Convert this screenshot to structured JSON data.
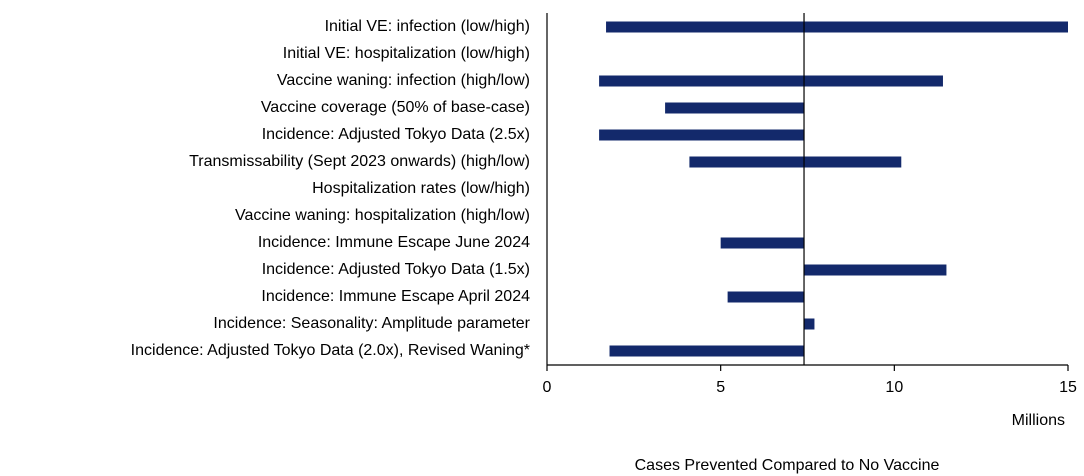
{
  "chart_data": {
    "type": "floating-bar",
    "categories": [
      "Initial VE: infection (low/high)",
      "Initial VE: hospitalization (low/high)",
      "Vaccine waning: infection (high/low)",
      "Vaccine coverage (50% of base-case)",
      "Incidence: Adjusted Tokyo Data (2.5x)",
      "Transmissability (Sept 2023 onwards) (high/low)",
      "Hospitalization rates (low/high)",
      "Vaccine waning: hospitalization (high/low)",
      "Incidence: Immune Escape June 2024",
      "Incidence: Adjusted Tokyo Data (1.5x)",
      "Incidence: Immune Escape April 2024",
      "Incidence: Seasonality: Amplitude parameter",
      "Incidence: Adjusted Tokyo Data (2.0x), Revised Waning*"
    ],
    "values": [
      [
        1.7,
        15.0
      ],
      null,
      [
        1.5,
        11.4
      ],
      [
        3.4,
        7.4
      ],
      [
        1.5,
        7.4
      ],
      [
        4.1,
        10.2
      ],
      null,
      null,
      [
        5.0,
        7.4
      ],
      [
        7.4,
        11.5
      ],
      [
        5.2,
        7.4
      ],
      [
        7.4,
        7.7
      ],
      [
        1.8,
        7.4
      ]
    ],
    "reference_line": 7.4,
    "color": "#13296b",
    "xlim": [
      0,
      15
    ],
    "xticks": [
      0,
      5,
      10,
      15
    ],
    "x_unit": "Millions",
    "x_label": "Cases Prevented Compared to No Vaccine"
  }
}
